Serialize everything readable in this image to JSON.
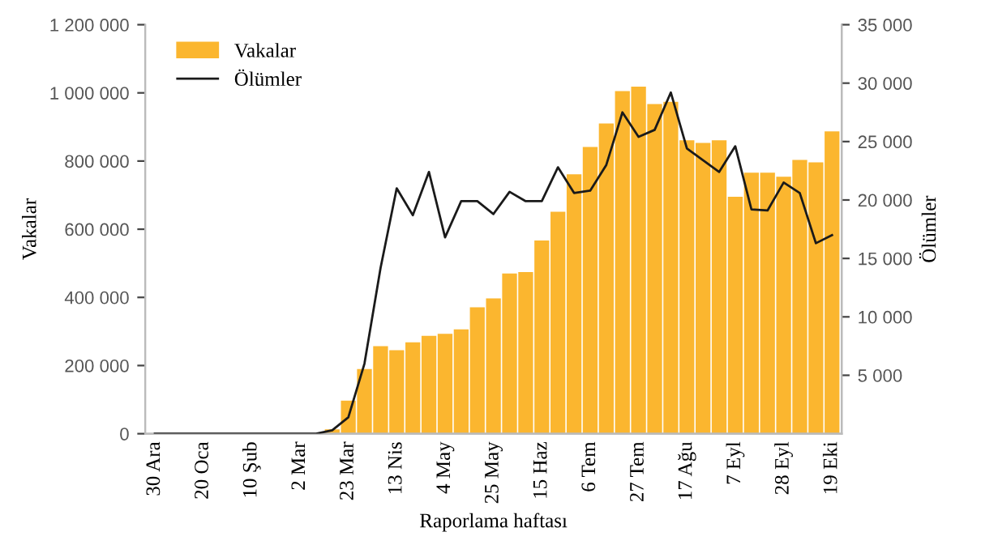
{
  "chart_data": {
    "type": "bar",
    "xlabel": "Raporlama haftası",
    "ylabel": "Vakalar",
    "y2label": "Ölümler",
    "categories": [
      "30 Ara",
      null,
      null,
      "20 Oca",
      null,
      null,
      "10 Şub",
      null,
      null,
      "2 Mar",
      null,
      null,
      "23 Mar",
      null,
      null,
      "13 Nis",
      null,
      null,
      "4 May",
      null,
      null,
      "25 May",
      null,
      null,
      "15 Haz",
      null,
      null,
      "6 Tem",
      null,
      null,
      "27 Tem",
      null,
      null,
      "17 Ağu",
      null,
      null,
      "7 Eyl",
      null,
      null,
      "28 Eyl",
      null,
      null,
      "19 Eki"
    ],
    "series": [
      {
        "name": "Vakalar",
        "color": "#fbb62f",
        "values": [
          0,
          0,
          0,
          0,
          0,
          0,
          0,
          0,
          0,
          0,
          0,
          13000,
          97000,
          190000,
          257000,
          245000,
          268000,
          287000,
          293000,
          306000,
          371000,
          397000,
          470000,
          474000,
          567000,
          651000,
          761000,
          841000,
          910000,
          1005000,
          1018000,
          967000,
          974000,
          861000,
          853000,
          861000,
          695000,
          766000,
          766000,
          754000,
          803000,
          796000,
          887000
        ]
      },
      {
        "name": "Ölümler",
        "type": "line",
        "axis": "y2",
        "color": "#1a1a1a",
        "values": [
          0,
          0,
          0,
          0,
          0,
          0,
          0,
          0,
          0,
          0,
          0,
          300,
          1400,
          6000,
          14200,
          21000,
          18700,
          22400,
          16800,
          19900,
          19900,
          18800,
          20700,
          19900,
          19900,
          22800,
          20600,
          20800,
          23000,
          27500,
          25400,
          26000,
          29200,
          24400,
          23400,
          22400,
          24600,
          19200,
          19100,
          21500,
          20600,
          16300,
          17000
        ]
      }
    ],
    "ylim": [
      0,
      1200000
    ],
    "yticks": [
      0,
      {
        "value": 200000,
        "label": "200 000"
      },
      {
        "value": 400000,
        "label": "400 000"
      },
      {
        "value": 600000,
        "label": "600 000"
      },
      {
        "value": 800000,
        "label": "800 000"
      },
      {
        "value": 1000000,
        "label": "1 000 000"
      },
      {
        "value": 1200000,
        "label": "1 200 000"
      }
    ],
    "y2lim": [
      0,
      35000
    ],
    "y2ticks": [
      {
        "value": 5000,
        "label": "5 000"
      },
      {
        "value": 10000,
        "label": "10 000"
      },
      {
        "value": 15000,
        "label": "15 000"
      },
      {
        "value": 20000,
        "label": "20 000"
      },
      {
        "value": 25000,
        "label": "25 000"
      },
      {
        "value": 30000,
        "label": "30 000"
      },
      {
        "value": 35000,
        "label": "35 000"
      }
    ],
    "legend": "top left",
    "grid": false,
    "marker": "none",
    "line_style": "solid"
  }
}
